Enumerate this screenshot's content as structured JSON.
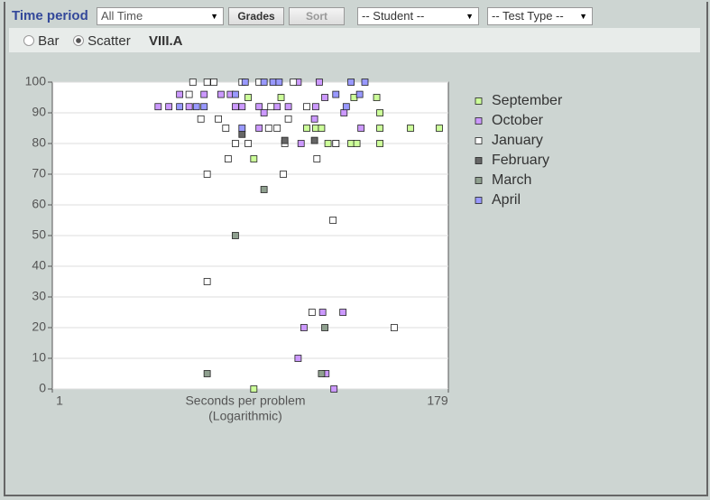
{
  "controls": {
    "time_period_label": "Time period",
    "time_period_value": "All Time",
    "grades_button": "Grades",
    "sort_button": "Sort",
    "student_select": "-- Student --",
    "test_type_select": "-- Test Type --",
    "bar_radio": "Bar",
    "scatter_radio": "Scatter",
    "group_label": "VIII.A"
  },
  "chart_data": {
    "type": "scatter",
    "xlabel": "Seconds per problem",
    "xlabel_note": "(Logarithmic)",
    "xlim": [
      1,
      179
    ],
    "xticks": [
      1,
      179
    ],
    "xlog": true,
    "ylim": [
      0,
      100
    ],
    "yticks": [
      0,
      10,
      20,
      30,
      40,
      50,
      60,
      70,
      80,
      90,
      100
    ],
    "grid": true,
    "legend": "right",
    "series": [
      {
        "name": "September",
        "color": "#ccff99",
        "x": [
          13,
          14,
          20,
          28,
          31.5,
          34,
          37,
          41,
          50,
          52,
          54,
          70,
          73,
          73,
          73,
          109,
          159,
          14
        ],
        "values": [
          95,
          75,
          95,
          85,
          85,
          85,
          80,
          80,
          80,
          95,
          80,
          95,
          90,
          85,
          80,
          85,
          85,
          0
        ]
      },
      {
        "name": "October",
        "color": "#cc99ff",
        "x": [
          4,
          4.6,
          5.3,
          6,
          7.3,
          9.1,
          10.3,
          11,
          12,
          15,
          16,
          19,
          22,
          26,
          31.5,
          33,
          35.5,
          45.6,
          57,
          27,
          34.5,
          45,
          25,
          36,
          40,
          31,
          25,
          15
        ],
        "values": [
          92,
          92,
          96,
          92,
          96,
          96,
          96,
          92,
          92,
          92,
          90,
          92,
          92,
          80,
          92,
          100,
          95,
          90,
          85,
          20,
          25,
          25,
          10,
          5,
          0,
          88,
          100,
          85
        ]
      },
      {
        "name": "January",
        "color": "#ffffff",
        "x": [
          6.3,
          7.6,
          8.3,
          6,
          7,
          8.8,
          9.7,
          11,
          13,
          12,
          15,
          17,
          17.5,
          19,
          21,
          22,
          23.5,
          28,
          32,
          7.6,
          20.6,
          39.5,
          7.6,
          30,
          88,
          10,
          41
        ],
        "values": [
          100,
          100,
          100,
          96,
          88,
          88,
          85,
          80,
          80,
          100,
          100,
          85,
          92,
          85,
          80,
          88,
          100,
          92,
          75,
          70,
          70,
          55,
          35,
          25,
          20,
          75,
          80
        ]
      },
      {
        "name": "February",
        "color": "#666666",
        "x": [
          12,
          21,
          31
        ],
        "values": [
          83,
          81,
          81
        ]
      },
      {
        "name": "March",
        "color": "#8fa08f",
        "x": [
          16,
          11,
          7.6,
          35.5,
          34
        ],
        "values": [
          65,
          50,
          5,
          20,
          5
        ]
      },
      {
        "name": "April",
        "color": "#9999ff",
        "x": [
          5.3,
          6.6,
          7.3,
          12.5,
          16,
          18,
          19.5,
          41,
          47,
          50,
          56,
          60,
          12,
          11
        ],
        "values": [
          92,
          92,
          92,
          100,
          100,
          100,
          100,
          96,
          92,
          100,
          96,
          100,
          85,
          96
        ]
      }
    ]
  }
}
